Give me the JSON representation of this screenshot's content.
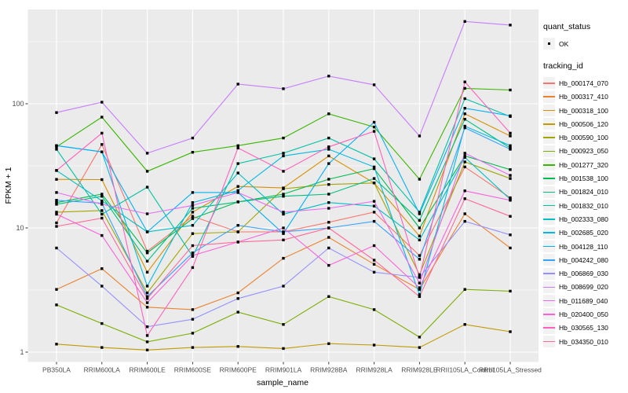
{
  "legend": {
    "quant_status_title": "quant_status",
    "quant_status_items": [
      "OK"
    ],
    "tracking_id_title": "tracking_id",
    "key_background": "#F2F2F2"
  },
  "axes": {
    "y_tick_labels": [
      "100",
      "10",
      "1"
    ],
    "y_tick_values": [
      100,
      10,
      1
    ],
    "tick_text_color": "#4D4D4D",
    "tick_mark_color": "#333333"
  },
  "chart_data": {
    "type": "line",
    "title": "",
    "xlabel": "sample_name",
    "ylabel": "FPKM + 1",
    "y_scale": "log10",
    "ylim": [
      1,
      574
    ],
    "y_major_gridlines": [
      1,
      10,
      100
    ],
    "y_minor_gridlines": [
      3.162,
      31.62,
      316.2
    ],
    "grid": "on",
    "panel_bg": "#EBEBEB",
    "gridline_color": "#FFFFFF",
    "point_color": "#000000",
    "legend_position": "right",
    "categories": [
      "PB350LA",
      "RRIM600LA",
      "RRIM600LE",
      "RRIM600SE",
      "RRIM600PE",
      "RRIM901LA",
      "RRIM928BA",
      "RRIM928LA",
      "RRIM928LE",
      "RRII105LA_Control",
      "RRII105LA_Stressed"
    ],
    "series": [
      {
        "name": "Hb_000174_070",
        "color": "#F8766D",
        "values": [
          11,
          47,
          6.5,
          12.4,
          9.3,
          9.3,
          11.1,
          13.4,
          6.0,
          31,
          17.5
        ]
      },
      {
        "name": "Hb_000317_410",
        "color": "#EA8331",
        "values": [
          3.2,
          4.7,
          2.3,
          2.2,
          3.0,
          5.7,
          8.4,
          5.1,
          3.2,
          13,
          6.9
        ]
      },
      {
        "name": "Hb_000318_100",
        "color": "#D89000",
        "values": [
          24.6,
          24.5,
          4.4,
          13.4,
          21.6,
          21,
          38,
          23,
          8.6,
          83,
          55
        ]
      },
      {
        "name": "Hb_000506_120",
        "color": "#C09B00",
        "values": [
          1.16,
          1.09,
          1.04,
          1.09,
          1.11,
          1.07,
          1.17,
          1.14,
          1.09,
          1.67,
          1.46
        ]
      },
      {
        "name": "Hb_000590_100",
        "color": "#A3A500",
        "values": [
          13.4,
          13.8,
          3.0,
          9.0,
          9.3,
          20.7,
          22.4,
          23,
          4.2,
          34,
          25
        ]
      },
      {
        "name": "Hb_000923_050",
        "color": "#7CAE00",
        "values": [
          2.4,
          1.7,
          1.21,
          1.42,
          2.1,
          1.67,
          2.8,
          2.2,
          1.32,
          3.2,
          3.1
        ]
      },
      {
        "name": "Hb_001277_320",
        "color": "#39B600",
        "values": [
          45,
          78,
          28.6,
          40.7,
          46,
          53,
          83,
          65,
          24.7,
          133,
          129
        ]
      },
      {
        "name": "Hb_001538_100",
        "color": "#00BB4E",
        "values": [
          16,
          18.7,
          6.3,
          11.9,
          16.2,
          18.7,
          24.7,
          30,
          10,
          38,
          29.5
        ]
      },
      {
        "name": "Hb_001824_010",
        "color": "#00BF7D",
        "values": [
          15.5,
          18,
          5.4,
          14.4,
          16.2,
          18,
          18.7,
          25,
          11.5,
          75,
          44
        ]
      },
      {
        "name": "Hb_001832_010",
        "color": "#00C1A3",
        "values": [
          43,
          12.9,
          21.3,
          5.9,
          33,
          40,
          53,
          36,
          13.4,
          110,
          79
        ]
      },
      {
        "name": "Hb_002333_080",
        "color": "#00BFC4",
        "values": [
          29,
          16.5,
          9.3,
          10.5,
          27.7,
          12.9,
          16,
          15,
          8.0,
          37,
          17
        ]
      },
      {
        "name": "Hb_002685_020",
        "color": "#00BAE0",
        "values": [
          46,
          41,
          3.4,
          16,
          20,
          38,
          43,
          31,
          2.9,
          66,
          46
        ]
      },
      {
        "name": "Hb_004128_110",
        "color": "#00B0F6",
        "values": [
          46,
          41,
          9.3,
          19.3,
          19.3,
          9.0,
          33,
          71,
          13,
          92,
          80
        ]
      },
      {
        "name": "Hb_004242_080",
        "color": "#35A2FF",
        "values": [
          16.7,
          15.8,
          2.8,
          6.3,
          10.5,
          9.3,
          10,
          11.3,
          5.6,
          64,
          43
        ]
      },
      {
        "name": "Hb_006869_030",
        "color": "#9590FF",
        "values": [
          6.9,
          3.4,
          1.6,
          1.84,
          2.7,
          3.4,
          6.9,
          4.4,
          4.0,
          11.3,
          8.8
        ]
      },
      {
        "name": "Hb_008699_020",
        "color": "#C77CFF",
        "values": [
          85,
          103,
          40,
          53,
          144,
          132,
          167,
          142,
          55,
          460,
          430
        ]
      },
      {
        "name": "Hb_011689_040",
        "color": "#E76BF3",
        "values": [
          19.3,
          15.5,
          13.0,
          15.2,
          19.3,
          13.4,
          14.4,
          16.4,
          3.6,
          40,
          26.5
        ]
      },
      {
        "name": "Hb_020400_050",
        "color": "#FA62DB",
        "values": [
          12.9,
          8.7,
          2.5,
          6.0,
          7.7,
          10,
          5.0,
          7.2,
          3.3,
          19.9,
          16.7
        ]
      },
      {
        "name": "Hb_030565_130",
        "color": "#FF62BC",
        "values": [
          29,
          58,
          1.36,
          4.8,
          44,
          28.6,
          45,
          60,
          4.0,
          150,
          58
        ]
      },
      {
        "name": "Hb_034350_010",
        "color": "#FF6A98",
        "values": [
          10.3,
          12,
          2.7,
          7.2,
          7.7,
          8.0,
          10,
          5.5,
          2.8,
          17.2,
          12.4
        ]
      }
    ]
  }
}
